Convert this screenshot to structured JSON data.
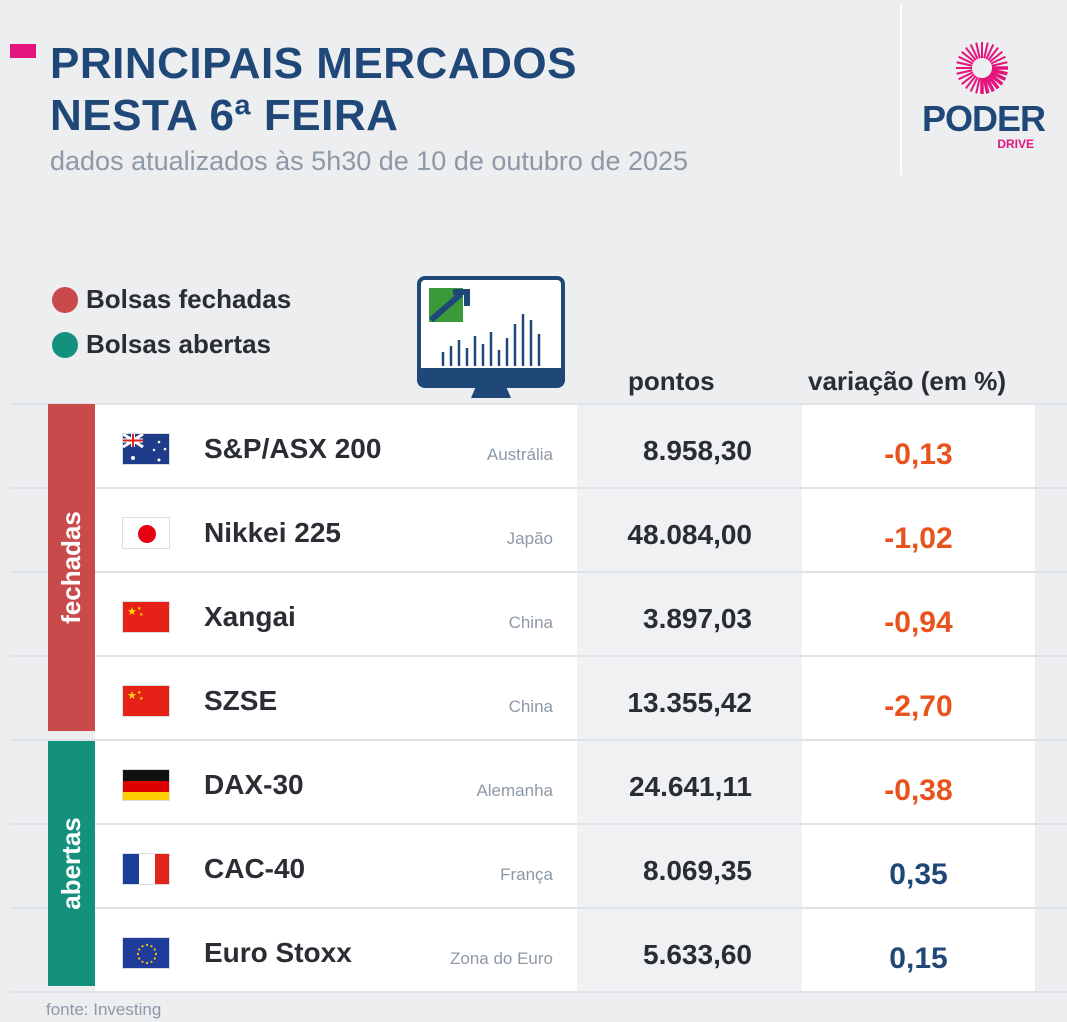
{
  "header": {
    "title_line1": "PRINCIPAIS MERCADOS",
    "title_line2": "NESTA 6ª FEIRA",
    "subtitle": "dados atualizados às 5h30 de 10 de outubro de 2025"
  },
  "logo": {
    "name": "PODER",
    "sub": "DRIVE"
  },
  "legend": [
    {
      "label": "Bolsas fechadas",
      "color": "#c94a4a"
    },
    {
      "label": "Bolsas abertas",
      "color": "#14917d"
    }
  ],
  "columns": {
    "points": "pontos",
    "variation": "variação (em %)"
  },
  "groups": {
    "closed": "fechadas",
    "open": "abertas"
  },
  "colors": {
    "negative": "#e8521c",
    "positive": "#1f4878"
  },
  "rows": [
    {
      "name": "S&P/ASX 200",
      "country": "Austrália",
      "points": "8.958,30",
      "variation": "-0,13",
      "flag": "au"
    },
    {
      "name": "Nikkei 225",
      "country": "Japão",
      "points": "48.084,00",
      "variation": "-1,02",
      "flag": "jp"
    },
    {
      "name": "Xangai",
      "country": "China",
      "points": "3.897,03",
      "variation": "-0,94",
      "flag": "cn"
    },
    {
      "name": "SZSE",
      "country": "China",
      "points": "13.355,42",
      "variation": "-2,70",
      "flag": "cn"
    },
    {
      "name": "DAX-30",
      "country": "Alemanha",
      "points": "24.641,11",
      "variation": "-0,38",
      "flag": "de"
    },
    {
      "name": "CAC-40",
      "country": "França",
      "points": "8.069,35",
      "variation": "0,35",
      "flag": "fr"
    },
    {
      "name": "Euro Stoxx",
      "country": "Zona do Euro",
      "points": "5.633,60",
      "variation": "0,15",
      "flag": "eu"
    }
  ],
  "footer": {
    "source": "fonte: Investing"
  }
}
